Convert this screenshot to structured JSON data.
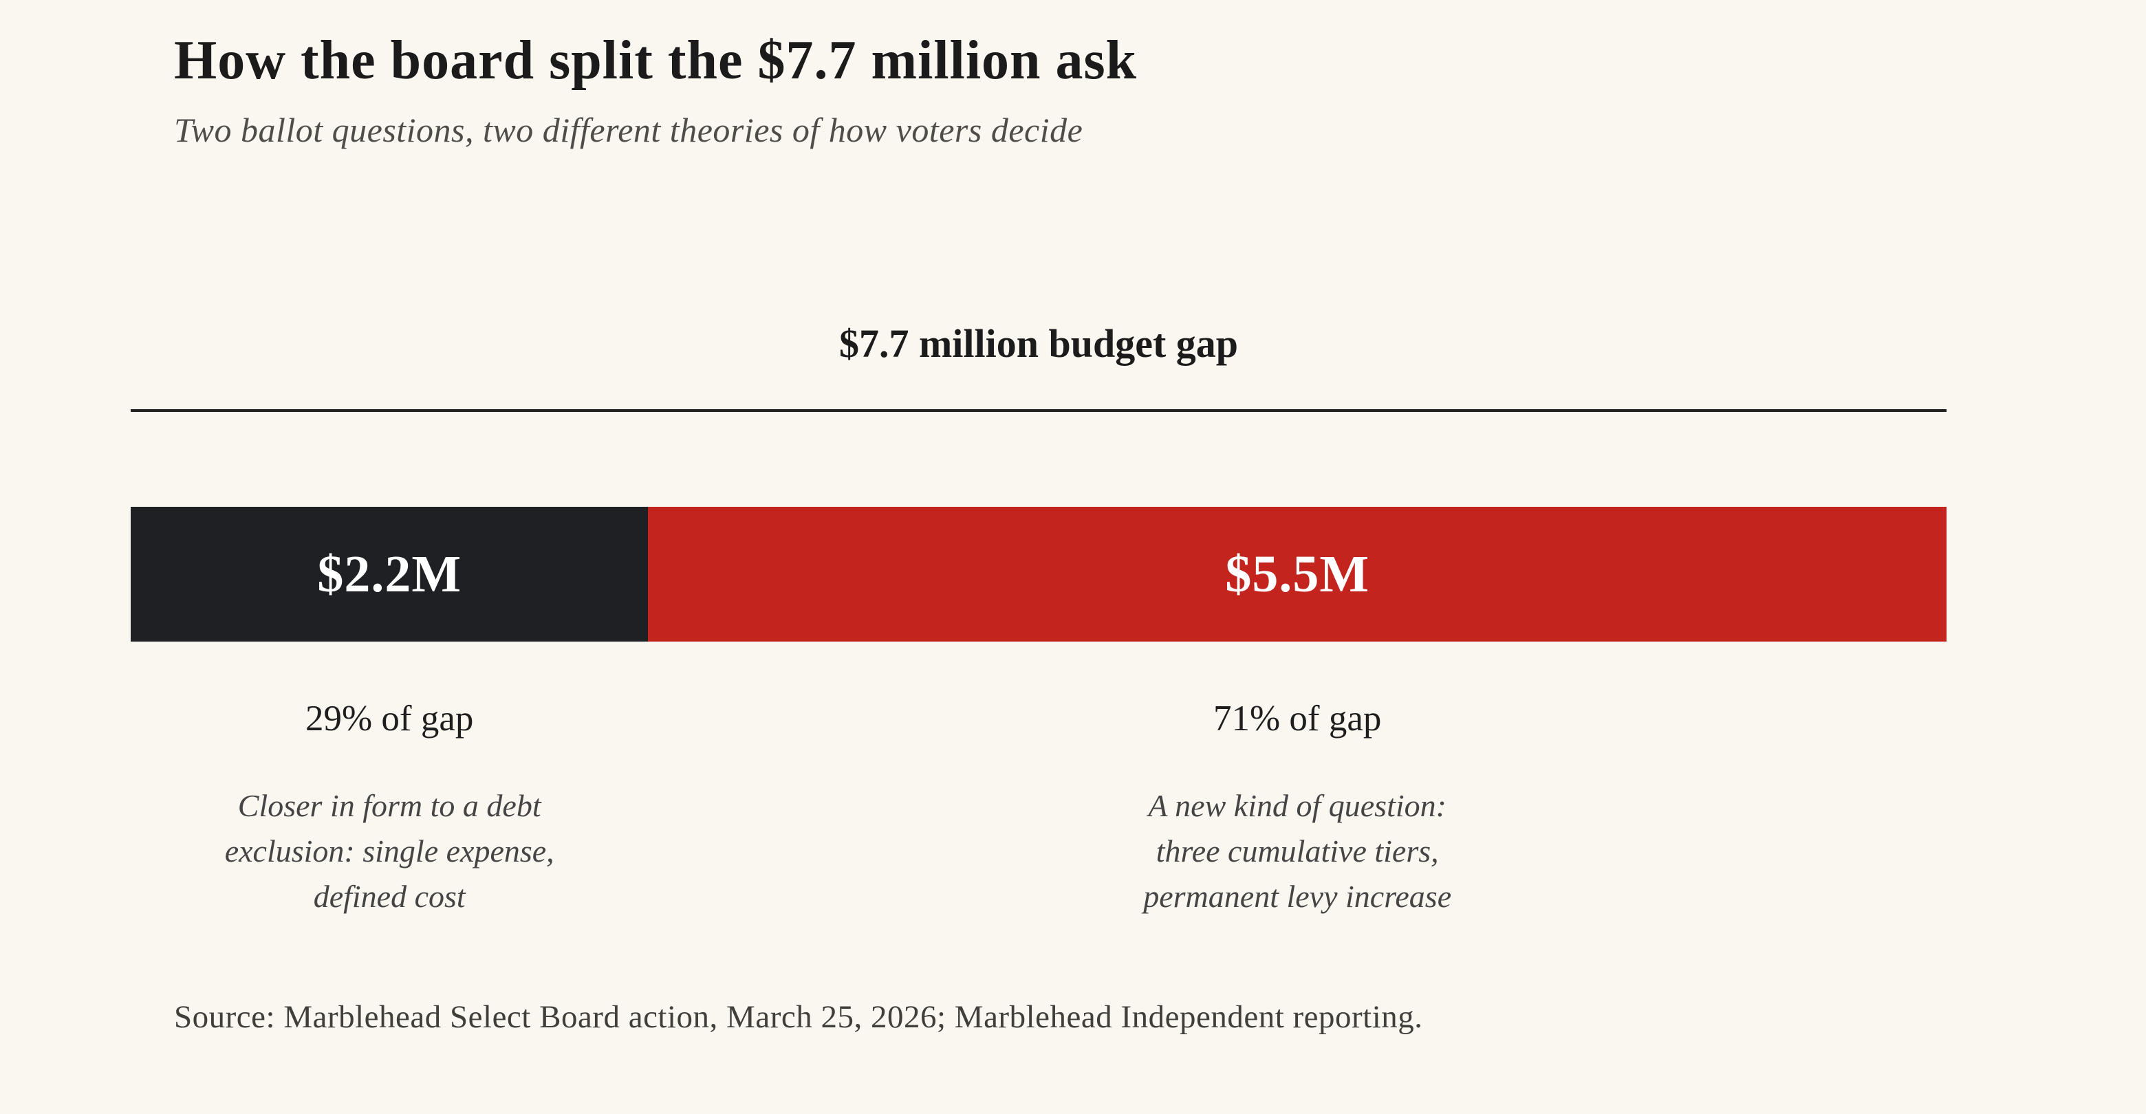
{
  "header": {
    "title": "How the board split the $7.7 million ask",
    "subtitle": "Two ballot questions, two different theories of how voters decide"
  },
  "chart": {
    "bar_axis_label": "$7.7 million budget gap",
    "segments": [
      {
        "label": "$2.2M",
        "pct_label": "29% of gap",
        "caption": "Closer in form to a debt\nexclusion: single expense,\ndefined cost",
        "width_pct": 28.5,
        "color": "#1e2023",
        "text_color": "#ffffff"
      },
      {
        "label": "$5.5M",
        "pct_label": "71% of gap",
        "caption": "A new kind of question:\nthree cumulative tiers,\npermanent levy increase",
        "width_pct": 71.5,
        "color": "#c3251e",
        "text_color": "#ffffff"
      }
    ]
  },
  "footer": {
    "source": "Source: Marblehead Select Board action, March 25, 2026; Marblehead Independent reporting."
  },
  "chart_data": {
    "type": "bar",
    "variant": "horizontal-stacked-single-bar",
    "title": "How the board split the $7.7 million ask",
    "subtitle": "Two ballot questions, two different theories of how voters decide",
    "bar_axis_label": "$7.7 million budget gap",
    "total_value_millions": 7.7,
    "series": [
      {
        "name": "$2.2M",
        "value_millions": 2.2,
        "pct_of_gap": 29,
        "color": "#1e2023",
        "annotation": "Closer in form to a debt exclusion: single expense, defined cost"
      },
      {
        "name": "$5.5M",
        "value_millions": 5.5,
        "pct_of_gap": 71,
        "color": "#c3251e",
        "annotation": "A new kind of question: three cumulative tiers, permanent levy increase"
      }
    ],
    "legend": "none",
    "grid": false,
    "background_color": "#faf7f0",
    "source": "Source: Marblehead Select Board action, March 25, 2026; Marblehead Independent reporting."
  }
}
